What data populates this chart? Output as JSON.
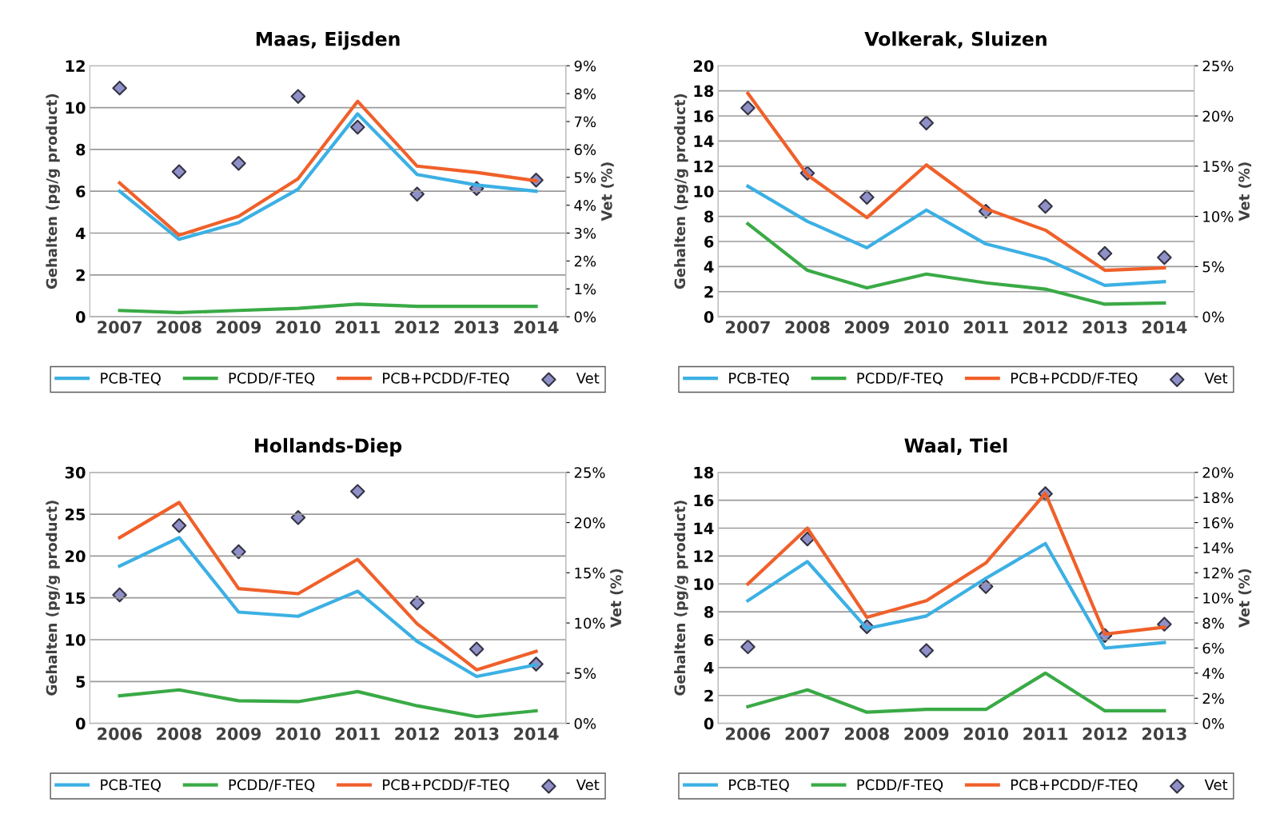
{
  "chart_data": [
    {
      "type": "line",
      "title": "Maas, Eijsden",
      "ylabel": "Gehalten (pg/g product)",
      "y2label": "Vet (%)",
      "categories": [
        "2007",
        "2008",
        "2009",
        "2010",
        "2011",
        "2012",
        "2013",
        "2014"
      ],
      "ylim": [
        0,
        12
      ],
      "yticks": [
        0,
        2,
        4,
        6,
        8,
        10,
        12
      ],
      "y2lim": [
        0,
        9
      ],
      "y2ticks": [
        {
          "value": 0,
          "label": "0%"
        },
        {
          "value": 1,
          "label": "1%"
        },
        {
          "value": 2,
          "label": "2%"
        },
        {
          "value": 3,
          "label": "3%"
        },
        {
          "value": 4,
          "label": "4%"
        },
        {
          "value": 5,
          "label": "5%"
        },
        {
          "value": 6,
          "label": "6%"
        },
        {
          "value": 7,
          "label": "7%"
        },
        {
          "value": 8,
          "label": "8%"
        },
        {
          "value": 9,
          "label": "9%"
        }
      ],
      "grid": "y",
      "legend": "bottom",
      "series": [
        {
          "name": "PCB-TEQ",
          "color": "#3cb0e4",
          "values": [
            6.0,
            3.7,
            4.5,
            6.1,
            9.7,
            6.8,
            6.3,
            6.0
          ]
        },
        {
          "name": "PCDD/F-TEQ",
          "color": "#3aaa46",
          "values": [
            0.3,
            0.2,
            0.3,
            0.4,
            0.6,
            0.5,
            0.5,
            0.5
          ]
        },
        {
          "name": "PCB+PCDD/F-TEQ",
          "color": "#f0602a",
          "values": [
            6.4,
            3.9,
            4.8,
            6.6,
            10.3,
            7.2,
            6.9,
            6.5
          ]
        },
        {
          "name": "Vet",
          "type": "scatter",
          "axis": "y2",
          "marker": "diamond",
          "color": "#9090c8",
          "values": [
            8.2,
            5.2,
            5.5,
            7.9,
            6.8,
            4.4,
            4.6,
            4.9
          ]
        }
      ]
    },
    {
      "type": "line",
      "title": "Volkerak, Sluizen",
      "ylabel": "Gehalten (pg/g product)",
      "y2label": "Vet (%)",
      "categories": [
        "2007",
        "2008",
        "2009",
        "2010",
        "2011",
        "2012",
        "2013",
        "2014"
      ],
      "ylim": [
        0,
        20
      ],
      "yticks": [
        0,
        2,
        4,
        6,
        8,
        10,
        12,
        14,
        16,
        18,
        20
      ],
      "y2lim": [
        0,
        25
      ],
      "y2ticks": [
        {
          "value": 0,
          "label": "0%"
        },
        {
          "value": 5,
          "label": "5%"
        },
        {
          "value": 10,
          "label": "10%"
        },
        {
          "value": 15,
          "label": "15%"
        },
        {
          "value": 20,
          "label": "20%"
        },
        {
          "value": 25,
          "label": "25%"
        }
      ],
      "grid": "y",
      "legend": "bottom",
      "series": [
        {
          "name": "PCB-TEQ",
          "color": "#3cb0e4",
          "values": [
            10.4,
            7.6,
            5.5,
            8.5,
            5.8,
            4.6,
            2.5,
            2.8
          ]
        },
        {
          "name": "PCDD/F-TEQ",
          "color": "#3aaa46",
          "values": [
            7.4,
            3.7,
            2.3,
            3.4,
            2.7,
            2.2,
            1.0,
            1.1
          ]
        },
        {
          "name": "PCB+PCDD/F-TEQ",
          "color": "#f0602a",
          "values": [
            17.8,
            11.3,
            7.9,
            12.1,
            8.6,
            6.9,
            3.7,
            3.9
          ]
        },
        {
          "name": "Vet",
          "type": "scatter",
          "axis": "y2",
          "marker": "diamond",
          "color": "#9090c8",
          "values": [
            20.8,
            14.3,
            11.9,
            19.3,
            10.5,
            11.0,
            6.3,
            5.9
          ]
        }
      ]
    },
    {
      "type": "line",
      "title": "Hollands-Diep",
      "ylabel": "Gehalten (pg/g product)",
      "y2label": "Vet (%)",
      "categories": [
        "2006",
        "2008",
        "2009",
        "2010",
        "2011",
        "2012",
        "2013",
        "2014"
      ],
      "ylim": [
        0,
        30
      ],
      "yticks": [
        0,
        5,
        10,
        15,
        20,
        25,
        30
      ],
      "y2lim": [
        0,
        25
      ],
      "y2ticks": [
        {
          "value": 0,
          "label": "0%"
        },
        {
          "value": 5,
          "label": "5%"
        },
        {
          "value": 10,
          "label": "10%"
        },
        {
          "value": 15,
          "label": "15%"
        },
        {
          "value": 20,
          "label": "20%"
        },
        {
          "value": 25,
          "label": "25%"
        }
      ],
      "grid": "y",
      "legend": "bottom",
      "series": [
        {
          "name": "PCB-TEQ",
          "color": "#3cb0e4",
          "values": [
            18.8,
            22.2,
            13.3,
            12.8,
            15.8,
            9.8,
            5.6,
            7.0
          ]
        },
        {
          "name": "PCDD/F-TEQ",
          "color": "#3aaa46",
          "values": [
            3.3,
            4.0,
            2.7,
            2.6,
            3.8,
            2.1,
            0.8,
            1.5
          ]
        },
        {
          "name": "PCB+PCDD/F-TEQ",
          "color": "#f0602a",
          "values": [
            22.2,
            26.4,
            16.1,
            15.5,
            19.6,
            11.9,
            6.4,
            8.6
          ]
        },
        {
          "name": "Vet",
          "type": "scatter",
          "axis": "y2",
          "marker": "diamond",
          "color": "#9090c8",
          "values": [
            12.8,
            19.7,
            17.1,
            20.5,
            23.1,
            12.0,
            7.4,
            5.9
          ]
        }
      ]
    },
    {
      "type": "line",
      "title": "Waal, Tiel",
      "ylabel": "Gehalten (pg/g product)",
      "y2label": "Vet (%)",
      "categories": [
        "2006",
        "2007",
        "2008",
        "2009",
        "2010",
        "2011",
        "2012",
        "2013"
      ],
      "ylim": [
        0,
        18
      ],
      "yticks": [
        0,
        2,
        4,
        6,
        8,
        10,
        12,
        14,
        16,
        18
      ],
      "y2lim": [
        0,
        20
      ],
      "y2ticks": [
        {
          "value": 0,
          "label": "0%"
        },
        {
          "value": 2,
          "label": "2%"
        },
        {
          "value": 4,
          "label": "4%"
        },
        {
          "value": 6,
          "label": "6%"
        },
        {
          "value": 8,
          "label": "8%"
        },
        {
          "value": 10,
          "label": "10%"
        },
        {
          "value": 12,
          "label": "12%"
        },
        {
          "value": 14,
          "label": "14%"
        },
        {
          "value": 16,
          "label": "16%"
        },
        {
          "value": 18,
          "label": "18%"
        },
        {
          "value": 20,
          "label": "20%"
        }
      ],
      "grid": "y",
      "legend": "bottom",
      "series": [
        {
          "name": "PCB-TEQ",
          "color": "#3cb0e4",
          "values": [
            8.8,
            11.6,
            6.8,
            7.7,
            10.4,
            12.9,
            5.4,
            5.8
          ]
        },
        {
          "name": "PCDD/F-TEQ",
          "color": "#3aaa46",
          "values": [
            1.2,
            2.4,
            0.8,
            1.0,
            1.0,
            3.6,
            0.9,
            0.9
          ]
        },
        {
          "name": "PCB+PCDD/F-TEQ",
          "color": "#f0602a",
          "values": [
            10.0,
            14.0,
            7.6,
            8.8,
            11.5,
            16.5,
            6.4,
            6.9
          ]
        },
        {
          "name": "Vet",
          "type": "scatter",
          "axis": "y2",
          "marker": "diamond",
          "color": "#9090c8",
          "values": [
            6.1,
            14.7,
            7.7,
            5.8,
            10.9,
            18.3,
            7.0,
            7.9
          ]
        }
      ]
    }
  ]
}
